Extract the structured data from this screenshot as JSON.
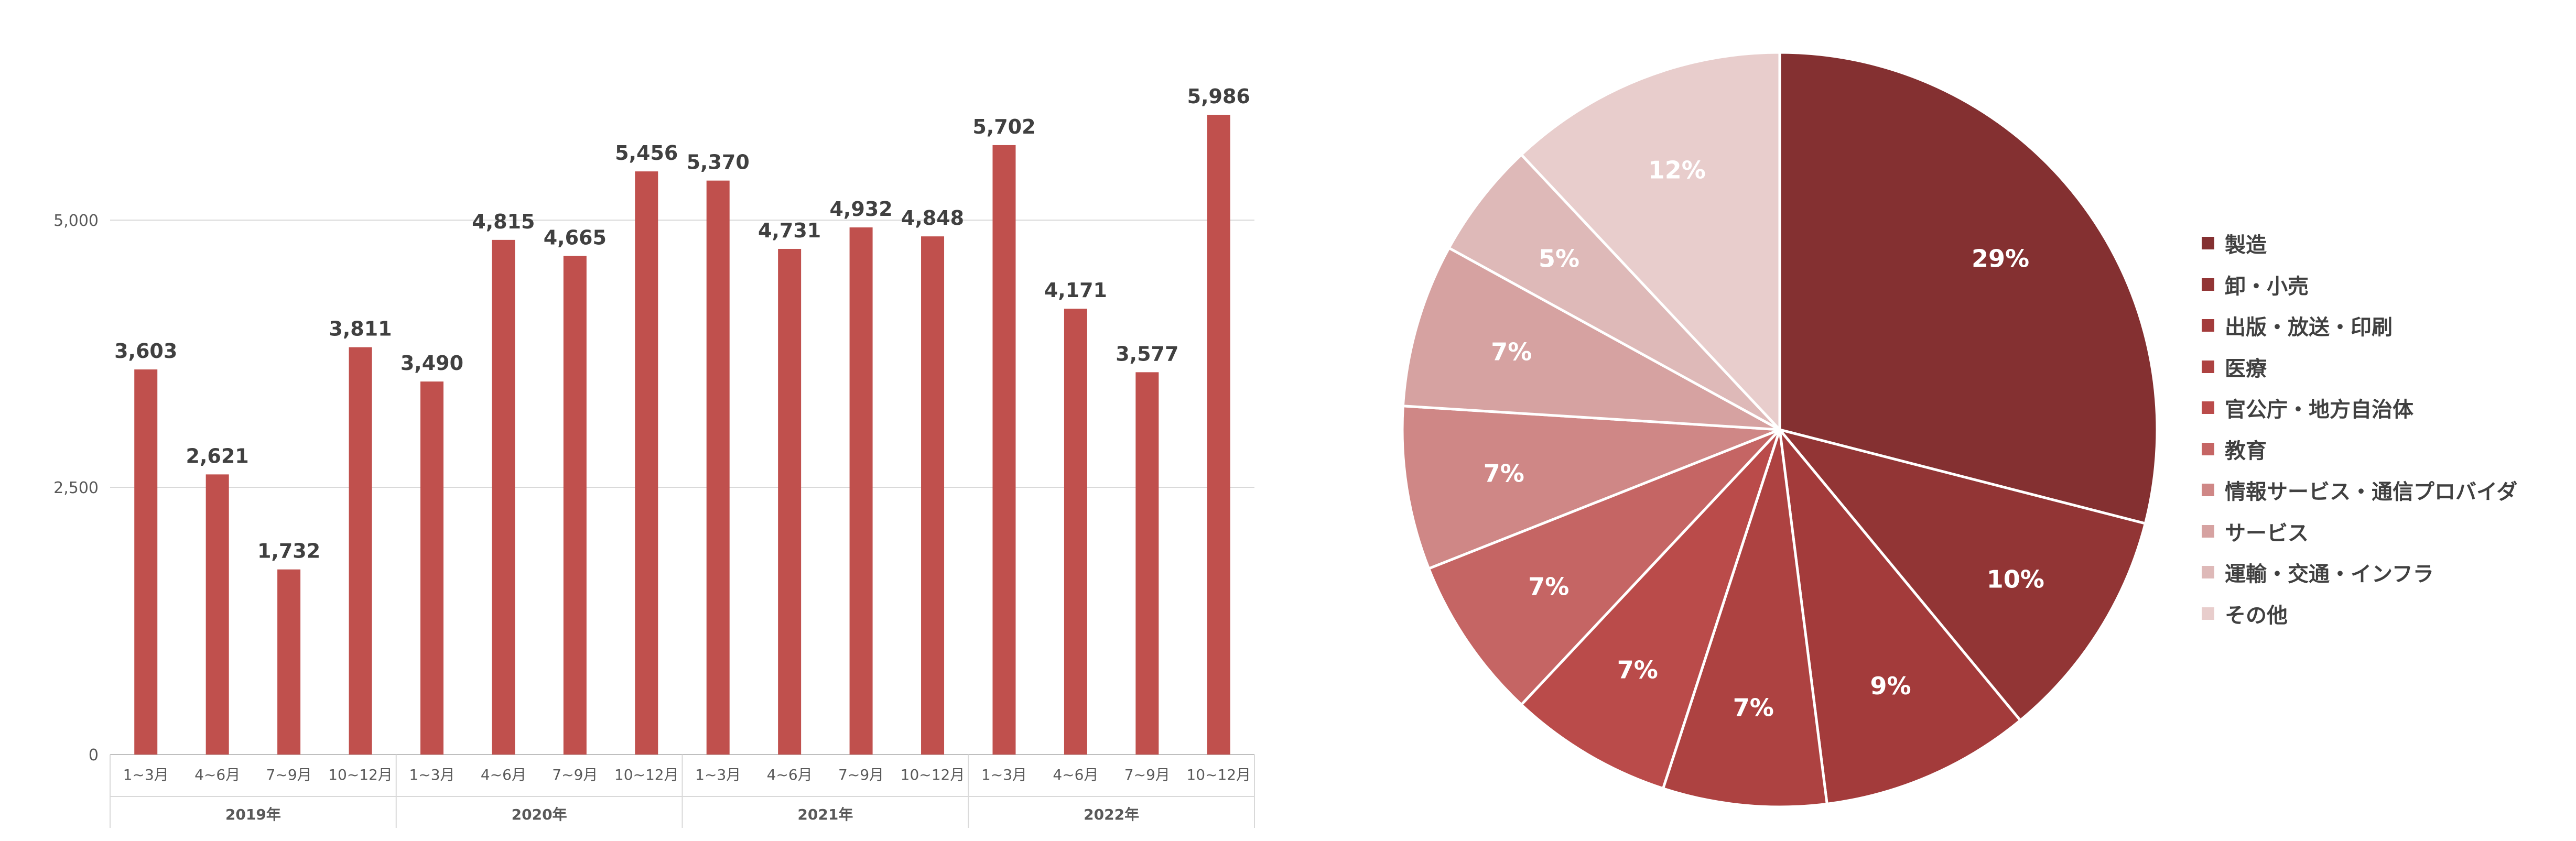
{
  "chart_data": [
    {
      "type": "bar",
      "title": "",
      "xlabel": "",
      "ylabel": "",
      "ylim": [
        0,
        6000
      ],
      "yticks": [
        "0",
        "2,500",
        "5,000"
      ],
      "ytick_values": [
        0,
        2500,
        5000
      ],
      "grid": true,
      "bar_color": "#C0504D",
      "years": [
        {
          "label": "2019年",
          "quarters": [
            "1~3月",
            "4~6月",
            "7~9月",
            "10~12月"
          ],
          "values": [
            3603,
            2621,
            1732,
            3811
          ],
          "value_labels": [
            "3,603",
            "2,621",
            "1,732",
            "3,811"
          ]
        },
        {
          "label": "2020年",
          "quarters": [
            "1~3月",
            "4~6月",
            "7~9月",
            "10~12月"
          ],
          "values": [
            3490,
            4815,
            4665,
            5456
          ],
          "value_labels": [
            "3,490",
            "4,815",
            "4,665",
            "5,456"
          ]
        },
        {
          "label": "2021年",
          "quarters": [
            "1~3月",
            "4~6月",
            "7~9月",
            "10~12月"
          ],
          "values": [
            5370,
            4731,
            4932,
            4848
          ],
          "value_labels": [
            "5,370",
            "4,731",
            "4,932",
            "4,848"
          ]
        },
        {
          "label": "2022年",
          "quarters": [
            "1~3月",
            "4~6月",
            "7~9月",
            "10~12月"
          ],
          "values": [
            5702,
            4171,
            3577,
            5986
          ],
          "value_labels": [
            "5,702",
            "4,171",
            "3,577",
            "5,986"
          ]
        }
      ]
    },
    {
      "type": "pie",
      "title": "",
      "legend_position": "right",
      "slices": [
        {
          "name": "製造",
          "value": 29,
          "label": "29%",
          "color": "#843031"
        },
        {
          "name": "卸・小売",
          "value": 10,
          "label": "10%",
          "color": "#923535"
        },
        {
          "name": "出版・放送・印刷",
          "value": 9,
          "label": "9%",
          "color": "#A33B3B"
        },
        {
          "name": "医療",
          "value": 7,
          "label": "7%",
          "color": "#AD4241"
        },
        {
          "name": "官公庁・地方自治体",
          "value": 7,
          "label": "7%",
          "color": "#BA4B4A"
        },
        {
          "name": "教育",
          "value": 7,
          "label": "7%",
          "color": "#C56564"
        },
        {
          "name": "情報サービス・通信プロバイダ",
          "value": 7,
          "label": "7%",
          "color": "#CF8786"
        },
        {
          "name": "サービス",
          "value": 7,
          "label": "7%",
          "color": "#D6A2A1"
        },
        {
          "name": "運輸・交通・インフラ",
          "value": 5,
          "label": "5%",
          "color": "#DEB9B8"
        },
        {
          "name": "その他",
          "value": 12,
          "label": "12%",
          "color": "#E8CDCC"
        }
      ]
    }
  ]
}
